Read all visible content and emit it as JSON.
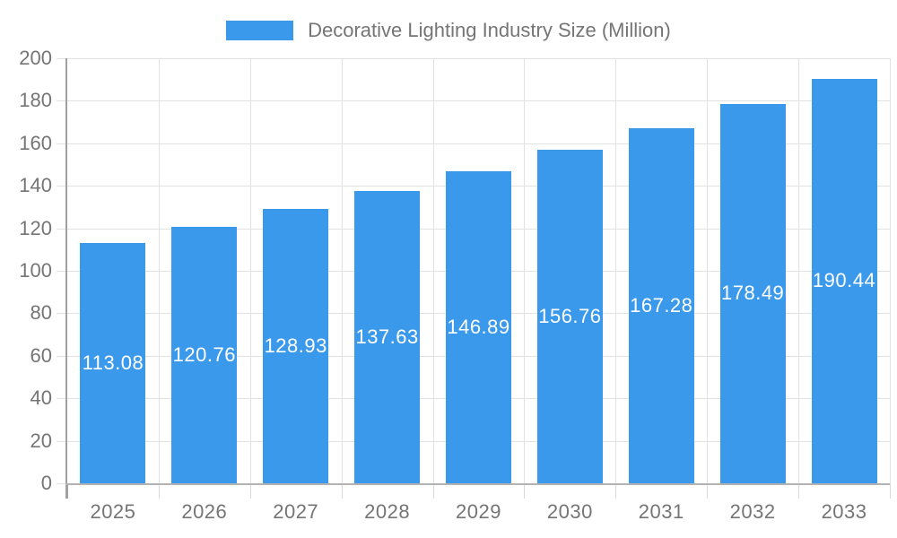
{
  "legend": {
    "label": "Decorative Lighting Industry Size (Million)"
  },
  "chart_data": {
    "type": "bar",
    "title": "Decorative Lighting Industry Size (Million)",
    "categories": [
      "2025",
      "2026",
      "2027",
      "2028",
      "2029",
      "2030",
      "2031",
      "2032",
      "2033"
    ],
    "values": [
      113.08,
      120.76,
      128.93,
      137.63,
      146.89,
      156.76,
      167.28,
      178.49,
      190.44
    ],
    "value_labels": [
      "113.08",
      "120.76",
      "128.93",
      "137.63",
      "146.89",
      "156.76",
      "167.28",
      "178.49",
      "190.44"
    ],
    "xlabel": "",
    "ylabel": "",
    "ylim": [
      0,
      200
    ],
    "ytick_step": 20,
    "ytick_labels": [
      "0",
      "20",
      "40",
      "60",
      "80",
      "100",
      "120",
      "140",
      "160",
      "180",
      "200"
    ],
    "grid": true,
    "legend_position": "top-center",
    "value_label_position": "inside-center"
  },
  "colors": {
    "bar": "#3B99EC",
    "grid": "#E2E2E2",
    "tick": "#D9D9D9",
    "y_axis": "#A0A0A0",
    "x_axis": "#B3B3B3",
    "axis_text": "#757575",
    "value_text": "#FFFFFF",
    "background": "#FFFFFF"
  }
}
